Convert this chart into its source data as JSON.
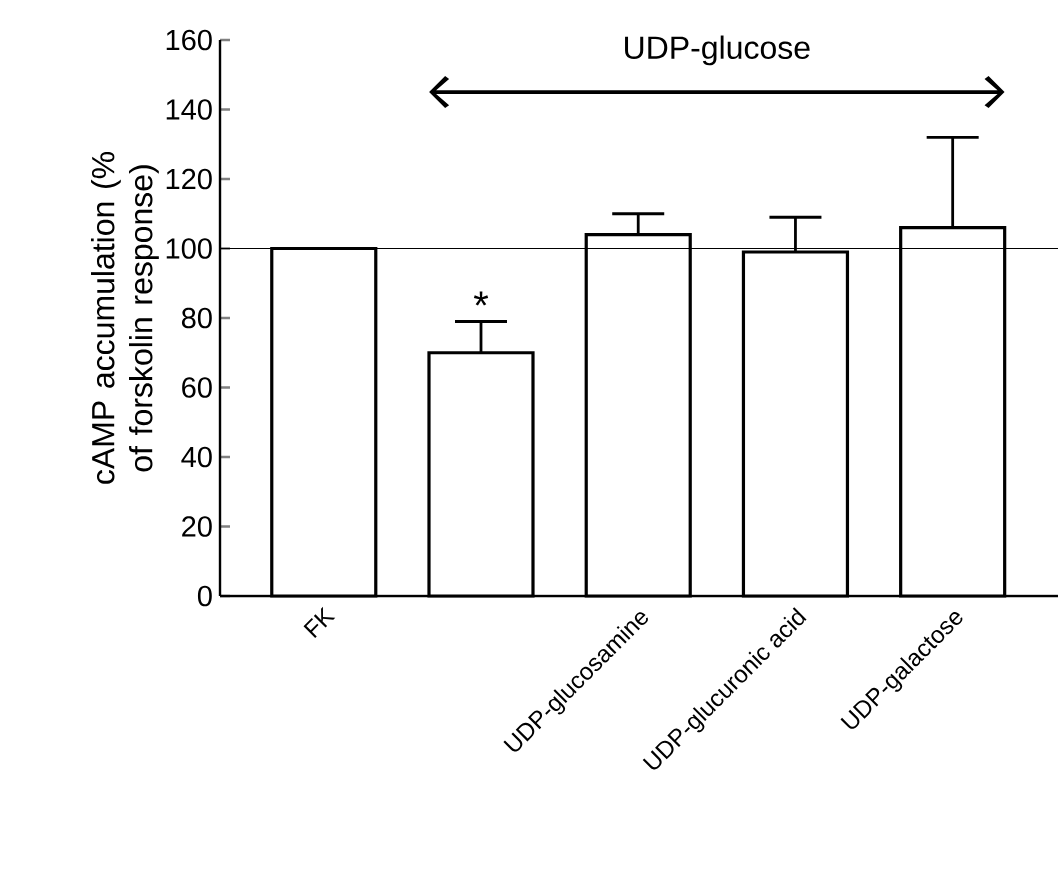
{
  "chart_data": {
    "type": "bar",
    "ylabel": "cAMP accumulation (% of forskolin response)",
    "categories": [
      "FK",
      null,
      "UDP-glucosamine",
      "UDP-glucuronic acid",
      "UDP-galactose"
    ],
    "values": [
      100,
      70,
      104,
      99,
      106
    ],
    "errors": [
      null,
      9,
      6,
      10,
      26
    ],
    "color": "#ffffff",
    "ylim": [
      0,
      160
    ],
    "yticks": [
      0,
      20,
      40,
      60,
      80,
      100,
      120,
      140,
      160
    ],
    "ref_lines": [
      {
        "axis": "y",
        "value": 100
      }
    ],
    "annotations": [
      "UDP-glucose",
      "*"
    ]
  }
}
